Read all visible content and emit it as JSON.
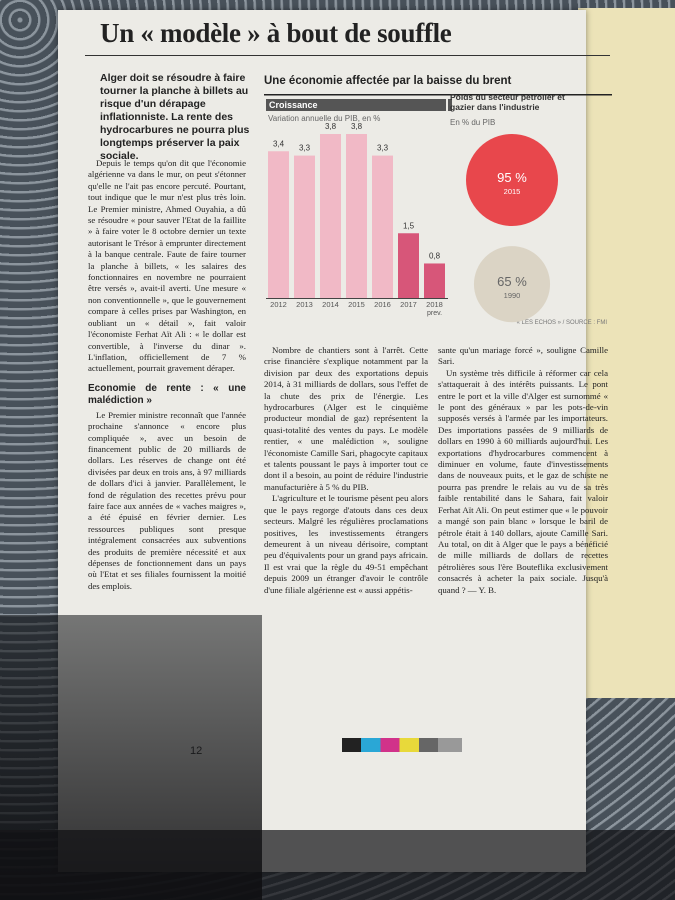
{
  "headline": "Un « modèle » à bout de souffle",
  "standfirst": "Alger doit se résoudre à faire tourner la planche à billets au risque d'un dérapage inflationniste. La rente des hydrocarbures ne pourra plus longtemps préserver la paix sociale.",
  "columns": [
    [
      "Depuis le temps qu'on dit que l'économie algérienne va dans le mur, on peut s'étonner qu'elle ne l'ait pas encore percuté. Pourtant, tout indique que le mur n'est plus très loin. Le Premier ministre, Ahmed Ouyahia, a dû se résoudre « pour sauver l'Etat de la faillite » à faire voter le 8 octobre dernier un texte autorisant le Trésor à emprunter directement à la banque centrale. Faute de faire tourner la planche à billets, « les salaires des fonctionnaires en novembre ne pourraient être versés », avait-il averti. Une mesure « non conventionnelle », que le gouvernement compare à celles prises par Washington, en oubliant un « détail », fait valoir l'économiste Ferhat Aït Ali : « le dollar est convertible, à l'inverse du dinar ». L'inflation, officiellement de 7 % actuellement, pourrait gravement déraper.",
      "Le Premier ministre reconnaît que l'année prochaine s'annonce « encore plus compliquée », avec un besoin de financement public de 20 milliards de dollars. Les réserves de change ont été divisées par deux en trois ans, à 97 milliards de dollars d'ici à janvier. Parallèlement, le fond de régulation des recettes prévu pour faire face aux années de « vaches maigres », a été épuisé en février dernier. Les ressources publiques sont presque intégralement consacrées aux subventions des produits de première nécessité et aux dépenses de fonctionnement dans un pays où l'Etat et ses filiales fournissent la moitié des emplois."
    ],
    [
      "Nombre de chantiers sont à l'arrêt. Cette crise financière s'explique notamment par la division par deux des exportations depuis 2014, à 31 milliards de dollars, sous l'effet de la chute des prix de l'énergie. Les hydrocarbures (Alger est le cinquième producteur mondial de gaz) représentent la quasi-totalité des ventes du pays. Le modèle rentier, « une malédiction », souligne l'économiste Camille Sari, phagocyte capitaux et talents poussant le pays à importer tout ce dont il a besoin, au point de réduire l'industrie manufacturière à 5 % du PIB.",
      "L'agriculture et le tourisme pèsent peu alors que le pays regorge d'atouts dans ces deux secteurs. Malgré les régulières proclamations positives, les investissements étrangers demeurent à un niveau dérisoire, comptant peu d'équivalents pour un grand pays africain. Il est vrai que la règle du 49-51 empêchant depuis 2009 un étranger d'avoir le contrôle d'une filiale algérienne est « aussi appétis-"
    ],
    [
      "sante qu'un mariage forcé », souligne Camille Sari.",
      "Un système très difficile à réformer car cela s'attaquerait à des intérêts puissants. Le pont entre le port et la ville d'Alger est surnommé « le pont des généraux » par les pots-de-vin supposés versés à l'armée par les importateurs. Des importations passées de 9 milliards de dollars en 1990 à 60 milliards aujourd'hui. Les exportations d'hydrocarbures commencent à diminuer en volume, faute d'investissements dans de nouveaux puits, et le gaz de schiste ne pourra pas prendre le relais au vu de sa très faible rentabilité dans le Sahara, fait valoir Ferhat Aït Ali. On peut estimer que « le pouvoir a mangé son pain blanc » lorsque le baril de pétrole était à 140 dollars, ajoute Camille Sari. Au total, on dit à Alger que le pays a bénéficié de mille milliards de dollars de recettes pétrolières sous l'ère Bouteflika exclusivement consacrés à acheter la paix sociale. Jusqu'à quand ? — Y. B."
    ]
  ],
  "subhead": "Economie de rente : « une malédiction »",
  "page_number": "12",
  "graphic_title": "Une économie affectée par la baisse du brent",
  "source": "« LES ECHOS » / SOURCE : FMI",
  "chart_data": [
    {
      "type": "bar",
      "title": "Croissance",
      "subtitle": "Variation annuelle du PIB, en %",
      "categories": [
        "2012",
        "2013",
        "2014",
        "2015",
        "2016",
        "2017",
        "2018"
      ],
      "annotation": "prev.",
      "values": [
        3.4,
        3.3,
        3.8,
        3.8,
        3.3,
        1.5,
        0.8
      ],
      "value_labels": [
        "3,4",
        "3,3",
        "3,8",
        "3,8",
        "3,3",
        "1,5",
        "0,8"
      ],
      "colors": [
        "#f1b9c6",
        "#f1b9c6",
        "#f1b9c6",
        "#f1b9c6",
        "#f1b9c6",
        "#d75679",
        "#d75679"
      ]
    },
    {
      "type": "bubble",
      "title": "Poids du secteur pétrolier et gazier dans l'industrie",
      "subtitle": "En % du PIB",
      "categories": [
        "2015",
        "1990"
      ],
      "values": [
        95,
        65
      ],
      "value_labels": [
        "95 %",
        "65 %"
      ],
      "colors": [
        "#e8474c",
        "#dbd4c5"
      ]
    }
  ]
}
